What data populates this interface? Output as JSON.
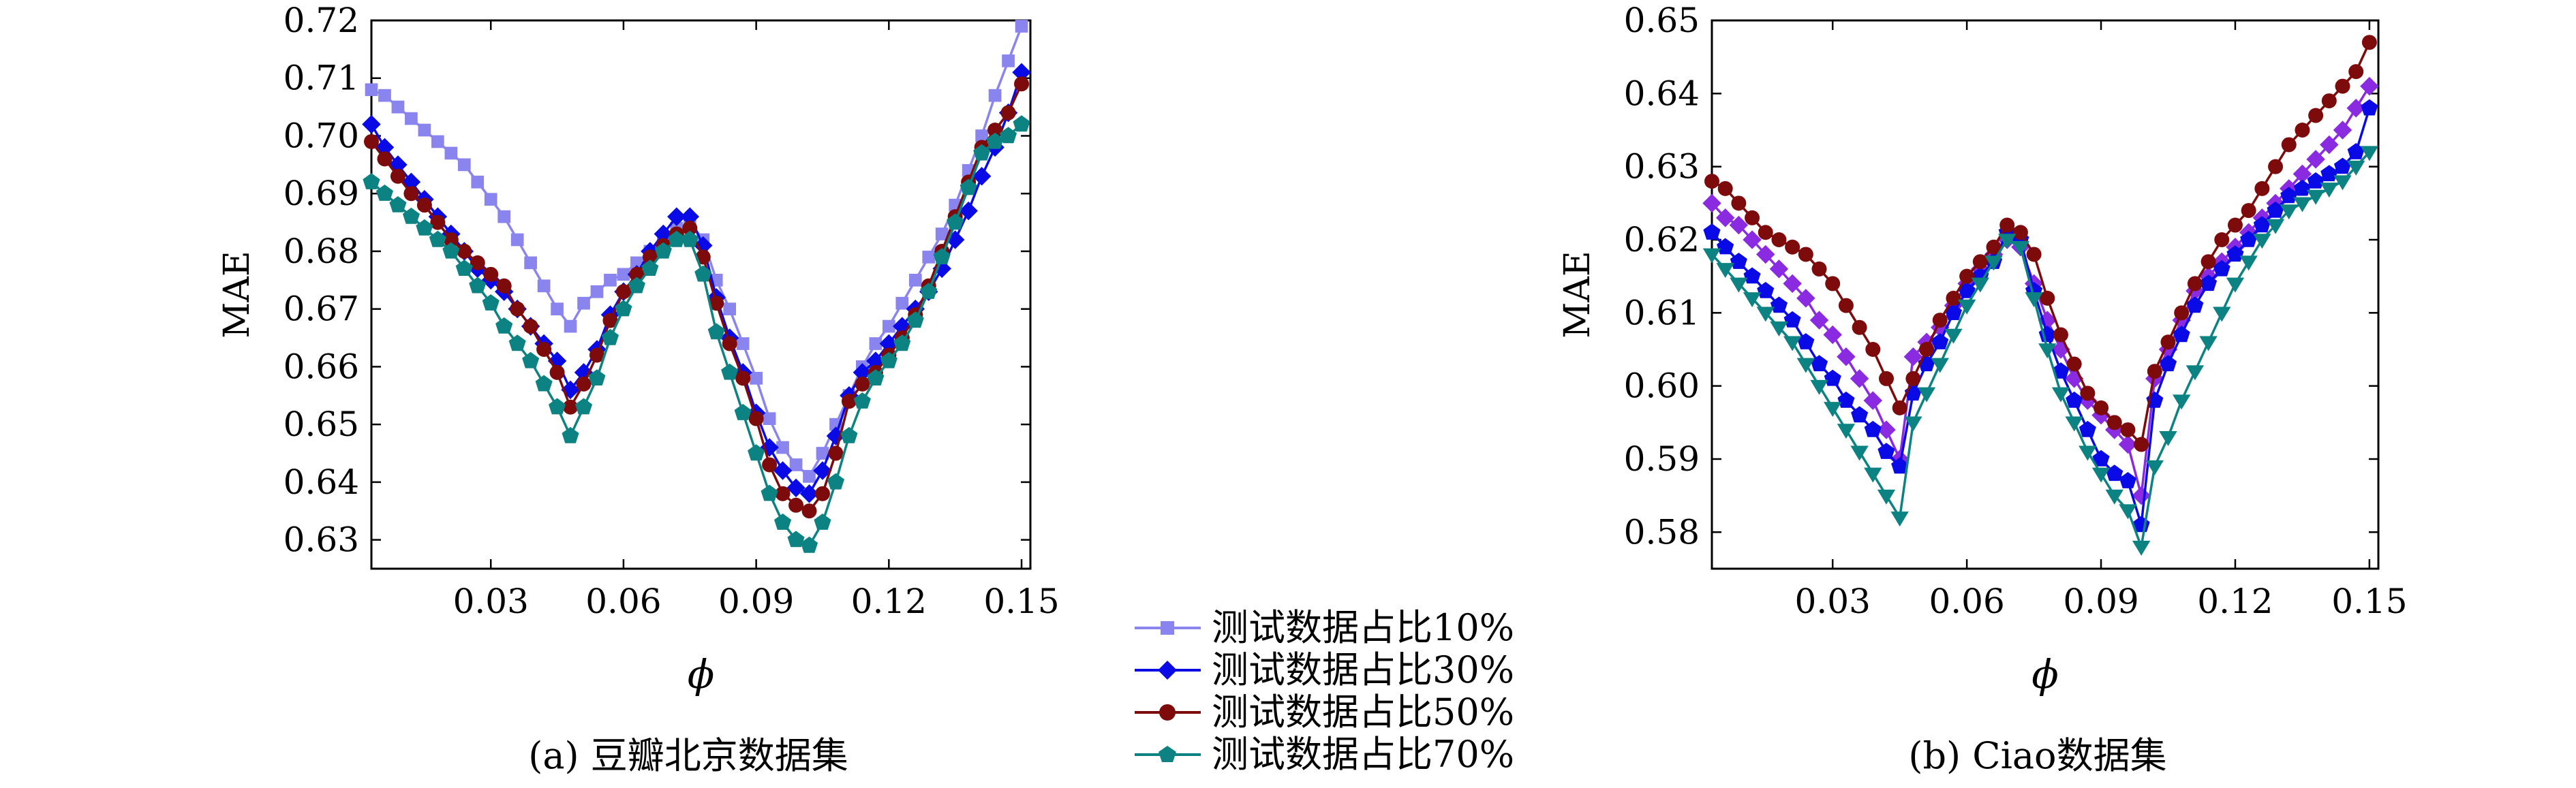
{
  "legend": [
    {
      "label": "测试数据占比10%",
      "color": "#8a84ee",
      "marker": "square"
    },
    {
      "label": "测试数据占比30%",
      "color": "#0a0ae6",
      "marker": "diamond"
    },
    {
      "label": "测试数据占比50%",
      "color": "#7d0b0b",
      "marker": "circle"
    },
    {
      "label": "测试数据占比70%",
      "color": "#0d8282",
      "marker": "pentagon"
    }
  ],
  "chart_data": [
    {
      "type": "line",
      "caption": "(a) 豆瓣北京数据集",
      "xlabel": "ϕ",
      "ylabel": "MAE",
      "xlim": [
        0.003,
        0.152
      ],
      "ylim": [
        0.625,
        0.72
      ],
      "xticks": [
        "0.03",
        "0.06",
        "0.09",
        "0.12",
        "0.15"
      ],
      "yticks": [
        "0.63",
        "0.64",
        "0.65",
        "0.66",
        "0.67",
        "0.68",
        "0.69",
        "0.70",
        "0.71",
        "0.72"
      ],
      "x": [
        0.003,
        0.006,
        0.009,
        0.012,
        0.015,
        0.018,
        0.021,
        0.024,
        0.027,
        0.03,
        0.033,
        0.036,
        0.039,
        0.042,
        0.045,
        0.048,
        0.051,
        0.054,
        0.057,
        0.06,
        0.063,
        0.066,
        0.069,
        0.072,
        0.075,
        0.078,
        0.081,
        0.084,
        0.087,
        0.09,
        0.093,
        0.096,
        0.099,
        0.102,
        0.105,
        0.108,
        0.111,
        0.114,
        0.117,
        0.12,
        0.123,
        0.126,
        0.129,
        0.132,
        0.135,
        0.138,
        0.141,
        0.144,
        0.147,
        0.15
      ],
      "series": [
        {
          "name": "测试数据占比10%",
          "color": "#8a84ee",
          "marker": "square",
          "values": [
            0.708,
            0.707,
            0.705,
            0.703,
            0.701,
            0.699,
            0.697,
            0.695,
            0.692,
            0.689,
            0.686,
            0.682,
            0.678,
            0.674,
            0.67,
            0.667,
            0.671,
            0.673,
            0.675,
            0.676,
            0.678,
            0.68,
            0.682,
            0.684,
            0.685,
            0.682,
            0.675,
            0.67,
            0.664,
            0.658,
            0.651,
            0.646,
            0.643,
            0.641,
            0.645,
            0.65,
            0.655,
            0.66,
            0.664,
            0.667,
            0.671,
            0.675,
            0.679,
            0.683,
            0.688,
            0.694,
            0.7,
            0.707,
            0.713,
            0.719
          ]
        },
        {
          "name": "测试数据占比30%",
          "color": "#0a0ae6",
          "marker": "diamond",
          "values": [
            0.702,
            0.698,
            0.695,
            0.692,
            0.689,
            0.686,
            0.683,
            0.68,
            0.677,
            0.675,
            0.673,
            0.67,
            0.667,
            0.664,
            0.661,
            0.656,
            0.659,
            0.663,
            0.669,
            0.673,
            0.676,
            0.68,
            0.683,
            0.686,
            0.686,
            0.681,
            0.672,
            0.665,
            0.659,
            0.652,
            0.646,
            0.642,
            0.639,
            0.638,
            0.642,
            0.648,
            0.655,
            0.659,
            0.661,
            0.664,
            0.667,
            0.67,
            0.673,
            0.677,
            0.682,
            0.687,
            0.693,
            0.698,
            0.704,
            0.711
          ]
        },
        {
          "name": "测试数据占比50%",
          "color": "#7d0b0b",
          "marker": "circle",
          "values": [
            0.699,
            0.696,
            0.693,
            0.69,
            0.688,
            0.685,
            0.682,
            0.68,
            0.678,
            0.676,
            0.674,
            0.67,
            0.667,
            0.663,
            0.659,
            0.653,
            0.657,
            0.662,
            0.668,
            0.673,
            0.676,
            0.679,
            0.681,
            0.683,
            0.684,
            0.679,
            0.671,
            0.664,
            0.658,
            0.651,
            0.643,
            0.638,
            0.636,
            0.635,
            0.638,
            0.645,
            0.654,
            0.657,
            0.659,
            0.662,
            0.665,
            0.669,
            0.674,
            0.68,
            0.686,
            0.692,
            0.698,
            0.701,
            0.704,
            0.709
          ]
        },
        {
          "name": "测试数据占比70%",
          "color": "#0d8282",
          "marker": "pentagon",
          "values": [
            0.692,
            0.69,
            0.688,
            0.686,
            0.684,
            0.682,
            0.68,
            0.677,
            0.674,
            0.671,
            0.667,
            0.664,
            0.661,
            0.657,
            0.653,
            0.648,
            0.653,
            0.658,
            0.665,
            0.67,
            0.674,
            0.677,
            0.68,
            0.682,
            0.682,
            0.676,
            0.666,
            0.659,
            0.652,
            0.645,
            0.638,
            0.633,
            0.63,
            0.629,
            0.633,
            0.64,
            0.648,
            0.654,
            0.658,
            0.661,
            0.664,
            0.668,
            0.673,
            0.679,
            0.685,
            0.691,
            0.697,
            0.699,
            0.7,
            0.702
          ]
        }
      ]
    },
    {
      "type": "line",
      "caption": "(b) Ciao数据集",
      "xlabel": "ϕ",
      "ylabel": "MAE",
      "xlim": [
        0.003,
        0.152
      ],
      "ylim": [
        0.575,
        0.65
      ],
      "xticks": [
        "0.03",
        "0.06",
        "0.09",
        "0.12",
        "0.15"
      ],
      "yticks": [
        "0.58",
        "0.59",
        "0.60",
        "0.61",
        "0.62",
        "0.63",
        "0.64",
        "0.65"
      ],
      "x": [
        0.003,
        0.006,
        0.009,
        0.012,
        0.015,
        0.018,
        0.021,
        0.024,
        0.027,
        0.03,
        0.033,
        0.036,
        0.039,
        0.042,
        0.045,
        0.048,
        0.051,
        0.054,
        0.057,
        0.06,
        0.063,
        0.066,
        0.069,
        0.072,
        0.075,
        0.078,
        0.081,
        0.084,
        0.087,
        0.09,
        0.093,
        0.096,
        0.099,
        0.102,
        0.105,
        0.108,
        0.111,
        0.114,
        0.117,
        0.12,
        0.123,
        0.126,
        0.129,
        0.132,
        0.135,
        0.138,
        0.141,
        0.144,
        0.147,
        0.15
      ],
      "series": [
        {
          "name": "测试数据占比10%",
          "color": "#8a2be2",
          "marker": "diamond",
          "values": [
            0.625,
            0.623,
            0.622,
            0.62,
            0.618,
            0.616,
            0.614,
            0.612,
            0.609,
            0.607,
            0.604,
            0.601,
            0.598,
            0.594,
            0.59,
            0.604,
            0.606,
            0.608,
            0.611,
            0.614,
            0.616,
            0.618,
            0.62,
            0.619,
            0.614,
            0.609,
            0.605,
            0.601,
            0.598,
            0.596,
            0.594,
            0.592,
            0.585,
            0.601,
            0.605,
            0.609,
            0.613,
            0.615,
            0.617,
            0.619,
            0.621,
            0.623,
            0.625,
            0.627,
            0.629,
            0.631,
            0.633,
            0.635,
            0.638,
            0.641
          ]
        },
        {
          "name": "测试数据占比30%",
          "color": "#0a0ae6",
          "marker": "pentagon",
          "values": [
            0.621,
            0.619,
            0.617,
            0.615,
            0.613,
            0.611,
            0.609,
            0.606,
            0.603,
            0.601,
            0.598,
            0.596,
            0.594,
            0.591,
            0.589,
            0.599,
            0.603,
            0.606,
            0.61,
            0.613,
            0.615,
            0.617,
            0.621,
            0.62,
            0.613,
            0.607,
            0.602,
            0.598,
            0.594,
            0.59,
            0.588,
            0.587,
            0.581,
            0.598,
            0.603,
            0.607,
            0.611,
            0.614,
            0.616,
            0.618,
            0.62,
            0.622,
            0.624,
            0.626,
            0.627,
            0.628,
            0.629,
            0.63,
            0.632,
            0.638
          ]
        },
        {
          "name": "测试数据占比50%",
          "color": "#7d0b0b",
          "marker": "circle",
          "values": [
            0.628,
            0.627,
            0.625,
            0.623,
            0.621,
            0.62,
            0.619,
            0.618,
            0.616,
            0.614,
            0.611,
            0.608,
            0.605,
            0.601,
            0.597,
            0.601,
            0.605,
            0.609,
            0.612,
            0.615,
            0.617,
            0.619,
            0.622,
            0.621,
            0.618,
            0.612,
            0.607,
            0.603,
            0.599,
            0.597,
            0.595,
            0.594,
            0.592,
            0.602,
            0.606,
            0.61,
            0.614,
            0.617,
            0.62,
            0.622,
            0.624,
            0.627,
            0.63,
            0.633,
            0.635,
            0.637,
            0.639,
            0.641,
            0.643,
            0.647
          ]
        },
        {
          "name": "测试数据占比70%",
          "color": "#0d8282",
          "marker": "triangle-down",
          "values": [
            0.618,
            0.616,
            0.614,
            0.612,
            0.61,
            0.608,
            0.606,
            0.603,
            0.6,
            0.597,
            0.594,
            0.591,
            0.588,
            0.585,
            0.582,
            0.595,
            0.599,
            0.603,
            0.607,
            0.611,
            0.614,
            0.617,
            0.62,
            0.619,
            0.612,
            0.605,
            0.599,
            0.595,
            0.591,
            0.588,
            0.585,
            0.583,
            0.578,
            0.589,
            0.593,
            0.598,
            0.602,
            0.606,
            0.61,
            0.614,
            0.617,
            0.62,
            0.622,
            0.624,
            0.625,
            0.626,
            0.627,
            0.628,
            0.63,
            0.632
          ]
        }
      ]
    }
  ]
}
